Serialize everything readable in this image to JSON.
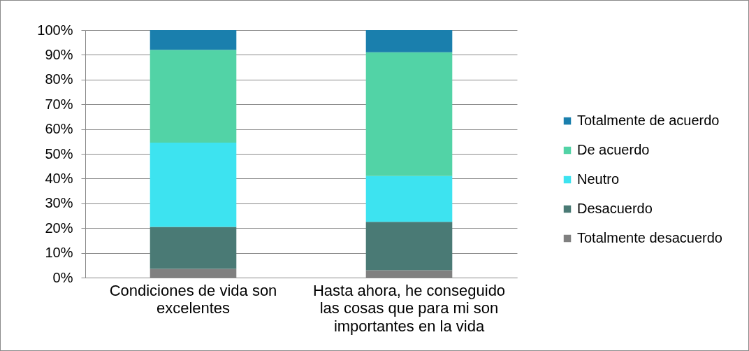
{
  "chart_data": {
    "type": "bar",
    "stacked": true,
    "categories": [
      "Condiciones de vida son excelentes",
      "Hasta ahora, he conseguido las cosas que para mi son importantes en la vida"
    ],
    "series": [
      {
        "name": "Totalmente desacuerdo",
        "color": "#808080",
        "values": [
          3.5,
          3
        ]
      },
      {
        "name": "Desacuerdo",
        "color": "#4a7a75",
        "values": [
          17,
          19.5
        ]
      },
      {
        "name": "Neutro",
        "color": "#3de3f0",
        "values": [
          34,
          18.5
        ]
      },
      {
        "name": "De acuerdo",
        "color": "#52d3a6",
        "values": [
          37.5,
          50
        ]
      },
      {
        "name": "Totalmente de acuerdo",
        "color": "#1a7fad",
        "values": [
          8,
          9
        ]
      }
    ],
    "ylim": [
      0,
      100
    ],
    "yticks": [
      {
        "value": 0,
        "label": "0%"
      },
      {
        "value": 10,
        "label": "10%"
      },
      {
        "value": 20,
        "label": "20%"
      },
      {
        "value": 30,
        "label": "30%"
      },
      {
        "value": 40,
        "label": "40%"
      },
      {
        "value": 50,
        "label": "50%"
      },
      {
        "value": 60,
        "label": "60%"
      },
      {
        "value": 70,
        "label": "70%"
      },
      {
        "value": 80,
        "label": "80%"
      },
      {
        "value": 90,
        "label": "90%"
      },
      {
        "value": 100,
        "label": "100%"
      }
    ],
    "grid": "y",
    "legend": "right"
  }
}
